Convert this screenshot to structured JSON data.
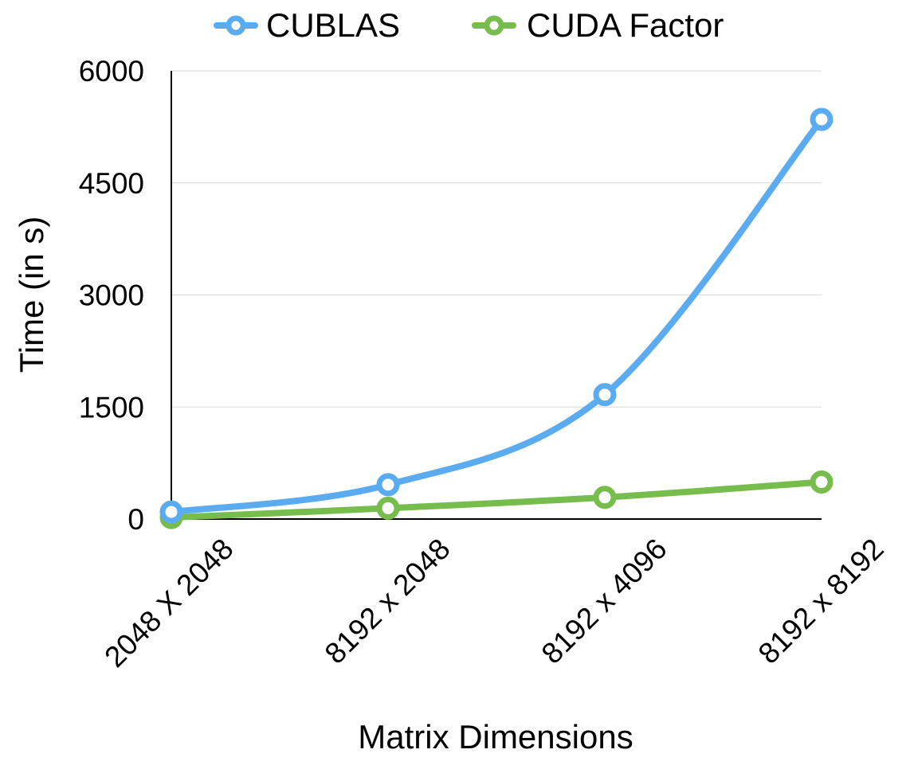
{
  "chart_data": {
    "type": "line",
    "title": "",
    "xlabel": "Matrix Dimensions",
    "ylabel": "Time (in s)",
    "categories": [
      "2048 X 2048",
      "8192 x 2048",
      "8192 x 4096",
      "8192 x 8192"
    ],
    "ylim": [
      0,
      6000
    ],
    "yticks": [
      "0",
      "1500",
      "3000",
      "4500",
      "6000"
    ],
    "grid": true,
    "legend_position": "top-center",
    "smooth": true,
    "series": [
      {
        "name": "CUBLAS",
        "color": "#5aabf0",
        "values": [
          95,
          460,
          1665,
          5350
        ]
      },
      {
        "name": "CUDA Factor",
        "color": "#76bd4d",
        "values": [
          20,
          145,
          290,
          495
        ]
      }
    ]
  }
}
